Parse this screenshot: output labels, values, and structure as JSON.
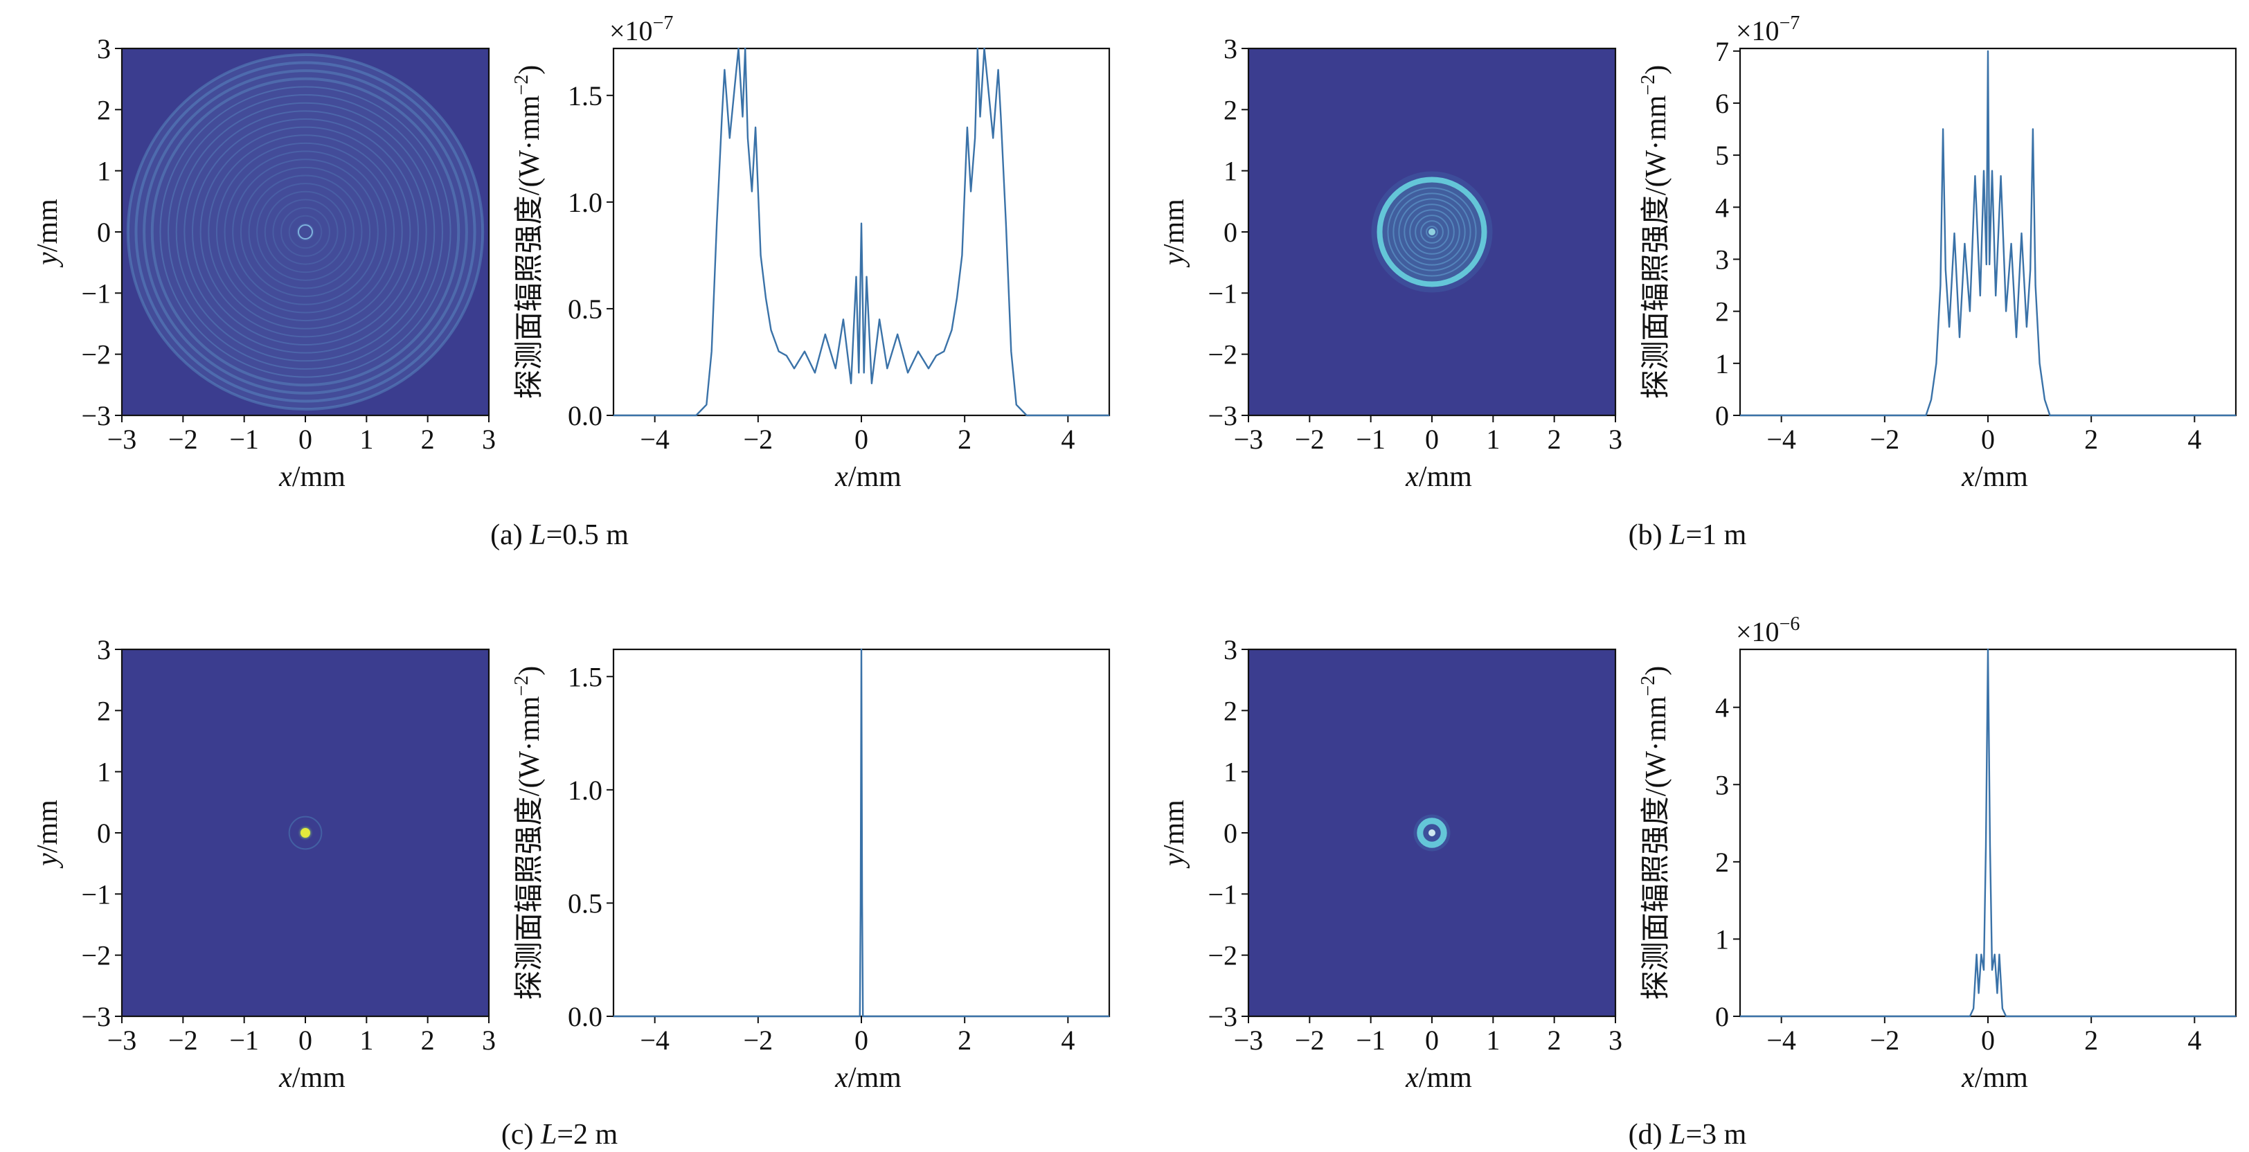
{
  "colors": {
    "map_background": "#3b3d8f",
    "ring_color": "#5d94c8",
    "bright_ring": "#64c6d8",
    "spot_center": "#e3ea3c",
    "line_color": "#3a72a8",
    "axis_color": "#111111"
  },
  "chart_data": [
    {
      "id": "a_map",
      "type": "heatmap",
      "panel": "(a)",
      "xlabel_italic": "x",
      "xlabel_unit": "/mm",
      "ylabel_italic": "y",
      "ylabel_unit": "/mm",
      "xlim": [
        -3,
        3
      ],
      "ylim": [
        -3,
        3
      ],
      "xticks": [
        "−3",
        "−2",
        "−1",
        "0",
        "1",
        "2",
        "3"
      ],
      "yticks": [
        "−3",
        "−2",
        "−1",
        "0",
        "1",
        "2",
        "3"
      ],
      "pattern": "wide_rings",
      "spot_radius_mm": 2.9
    },
    {
      "id": "a_profile",
      "type": "line",
      "panel": "(a)",
      "xlabel_italic": "x",
      "xlabel_unit": "/mm",
      "ylabel": "探测面辐照强度/(W·mm",
      "ylabel_sup": "−2",
      "ylabel_tail": ")",
      "multiplier_base": "×10",
      "multiplier_exp": "−7",
      "xlim": [
        -4.8,
        4.8
      ],
      "ylim": [
        0,
        1.72
      ],
      "xticks": [
        "−4",
        "−2",
        "0",
        "2",
        "4"
      ],
      "yticks": [
        "0.0",
        "0.5",
        "1.0",
        "1.5"
      ],
      "x": [
        -4.8,
        -3.2,
        -3.0,
        -2.9,
        -2.8,
        -2.7,
        -2.65,
        -2.55,
        -2.45,
        -2.38,
        -2.3,
        -2.25,
        -2.2,
        -2.12,
        -2.05,
        -1.95,
        -1.85,
        -1.75,
        -1.6,
        -1.45,
        -1.3,
        -1.1,
        -0.9,
        -0.7,
        -0.5,
        -0.35,
        -0.2,
        -0.1,
        -0.05,
        0.0,
        0.05,
        0.1,
        0.2,
        0.35,
        0.5,
        0.7,
        0.9,
        1.1,
        1.3,
        1.45,
        1.6,
        1.75,
        1.85,
        1.95,
        2.05,
        2.12,
        2.2,
        2.25,
        2.3,
        2.38,
        2.45,
        2.55,
        2.65,
        2.7,
        2.8,
        2.9,
        3.0,
        3.2,
        4.8
      ],
      "y": [
        0.0,
        0.0,
        0.05,
        0.3,
        0.9,
        1.4,
        1.62,
        1.3,
        1.55,
        1.75,
        1.4,
        1.72,
        1.3,
        1.05,
        1.35,
        0.75,
        0.55,
        0.4,
        0.3,
        0.28,
        0.22,
        0.3,
        0.2,
        0.38,
        0.22,
        0.45,
        0.15,
        0.65,
        0.2,
        0.9,
        0.2,
        0.65,
        0.15,
        0.45,
        0.22,
        0.38,
        0.2,
        0.3,
        0.22,
        0.28,
        0.3,
        0.4,
        0.55,
        0.75,
        1.35,
        1.05,
        1.3,
        1.72,
        1.4,
        1.75,
        1.55,
        1.3,
        1.62,
        1.4,
        0.9,
        0.3,
        0.05,
        0.0,
        0.0
      ]
    },
    {
      "id": "b_map",
      "type": "heatmap",
      "panel": "(b)",
      "xlabel_italic": "x",
      "xlabel_unit": "/mm",
      "ylabel_italic": "y",
      "ylabel_unit": "/mm",
      "xlim": [
        -3,
        3
      ],
      "ylim": [
        -3,
        3
      ],
      "xticks": [
        "−3",
        "−2",
        "−1",
        "0",
        "1",
        "2",
        "3"
      ],
      "yticks": [
        "−3",
        "−2",
        "−1",
        "0",
        "1",
        "2",
        "3"
      ],
      "pattern": "ring_disc",
      "spot_radius_mm": 0.9
    },
    {
      "id": "b_profile",
      "type": "line",
      "panel": "(b)",
      "xlabel_italic": "x",
      "xlabel_unit": "/mm",
      "ylabel": "探测面辐照强度/(W·mm",
      "ylabel_sup": "−2",
      "ylabel_tail": ")",
      "multiplier_base": "×10",
      "multiplier_exp": "−7",
      "xlim": [
        -4.8,
        4.8
      ],
      "ylim": [
        0,
        7.05
      ],
      "xticks": [
        "−4",
        "−2",
        "0",
        "2",
        "4"
      ],
      "yticks": [
        "0",
        "1",
        "2",
        "3",
        "4",
        "5",
        "6",
        "7"
      ],
      "x": [
        -4.8,
        -1.2,
        -1.1,
        -1.0,
        -0.92,
        -0.87,
        -0.82,
        -0.75,
        -0.65,
        -0.55,
        -0.45,
        -0.35,
        -0.25,
        -0.15,
        -0.08,
        -0.03,
        0.0,
        0.03,
        0.08,
        0.15,
        0.25,
        0.35,
        0.45,
        0.55,
        0.65,
        0.75,
        0.82,
        0.87,
        0.92,
        1.0,
        1.1,
        1.2,
        4.8
      ],
      "y": [
        0.0,
        0.0,
        0.3,
        1.0,
        2.5,
        5.5,
        2.8,
        1.7,
        3.5,
        1.5,
        3.3,
        2.0,
        4.6,
        2.3,
        4.7,
        2.9,
        7.0,
        2.9,
        4.7,
        2.3,
        4.6,
        2.0,
        3.3,
        1.5,
        3.5,
        1.7,
        2.8,
        5.5,
        2.5,
        1.0,
        0.3,
        0.0,
        0.0
      ]
    },
    {
      "id": "c_map",
      "type": "heatmap",
      "panel": "(c)",
      "xlabel_italic": "x",
      "xlabel_unit": "/mm",
      "ylabel_italic": "y",
      "ylabel_unit": "/mm",
      "xlim": [
        -3,
        3
      ],
      "ylim": [
        -3,
        3
      ],
      "xticks": [
        "−3",
        "−2",
        "−1",
        "0",
        "1",
        "2",
        "3"
      ],
      "yticks": [
        "−3",
        "−2",
        "−1",
        "0",
        "1",
        "2",
        "3"
      ],
      "pattern": "focus_spot",
      "spot_radius_mm": 0.12
    },
    {
      "id": "c_profile",
      "type": "line",
      "panel": "(c)",
      "xlabel_italic": "x",
      "xlabel_unit": "/mm",
      "ylabel": "探测面辐照强度/(W·mm",
      "ylabel_sup": "−2",
      "ylabel_tail": ")",
      "multiplier_base": "",
      "multiplier_exp": "",
      "xlim": [
        -4.8,
        4.8
      ],
      "ylim": [
        0,
        1.62
      ],
      "xticks": [
        "−4",
        "−2",
        "0",
        "2",
        "4"
      ],
      "yticks": [
        "0.0",
        "0.5",
        "1.0",
        "1.5"
      ],
      "x": [
        -4.8,
        -0.03,
        -0.015,
        0.0,
        0.015,
        0.03,
        4.8
      ],
      "y": [
        0.0,
        0.0,
        0.5,
        1.62,
        0.5,
        0.0,
        0.0
      ]
    },
    {
      "id": "d_map",
      "type": "heatmap",
      "panel": "(d)",
      "xlabel_italic": "x",
      "xlabel_unit": "/mm",
      "ylabel_italic": "y",
      "ylabel_unit": "/mm",
      "xlim": [
        -3,
        3
      ],
      "ylim": [
        -3,
        3
      ],
      "xticks": [
        "−3",
        "−2",
        "−1",
        "0",
        "1",
        "2",
        "3"
      ],
      "yticks": [
        "−3",
        "−2",
        "−1",
        "0",
        "1",
        "2",
        "3"
      ],
      "pattern": "small_ring",
      "spot_radius_mm": 0.3
    },
    {
      "id": "d_profile",
      "type": "line",
      "panel": "(d)",
      "xlabel_italic": "x",
      "xlabel_unit": "/mm",
      "ylabel": "探测面辐照强度/(W·mm",
      "ylabel_sup": "−2",
      "ylabel_tail": ")",
      "multiplier_base": "×10",
      "multiplier_exp": "−6",
      "xlim": [
        -4.8,
        4.8
      ],
      "ylim": [
        0,
        4.75
      ],
      "xticks": [
        "−4",
        "−2",
        "0",
        "2",
        "4"
      ],
      "yticks": [
        "0",
        "1",
        "2",
        "3",
        "4"
      ],
      "x": [
        -4.8,
        -0.35,
        -0.28,
        -0.22,
        -0.18,
        -0.13,
        -0.08,
        -0.04,
        0.0,
        0.04,
        0.08,
        0.13,
        0.18,
        0.22,
        0.28,
        0.35,
        4.8
      ],
      "y": [
        0.0,
        0.0,
        0.1,
        0.8,
        0.3,
        0.8,
        0.6,
        2.2,
        4.75,
        2.2,
        0.6,
        0.8,
        0.3,
        0.8,
        0.1,
        0.0,
        0.0
      ]
    }
  ],
  "captions": [
    {
      "prefix": "(a) ",
      "italic": "L",
      "suffix": "=0.5 m"
    },
    {
      "prefix": "(b) ",
      "italic": "L",
      "suffix": "=1 m"
    },
    {
      "prefix": "(c) ",
      "italic": "L",
      "suffix": "=2 m"
    },
    {
      "prefix": "(d) ",
      "italic": "L",
      "suffix": "=3 m"
    }
  ]
}
